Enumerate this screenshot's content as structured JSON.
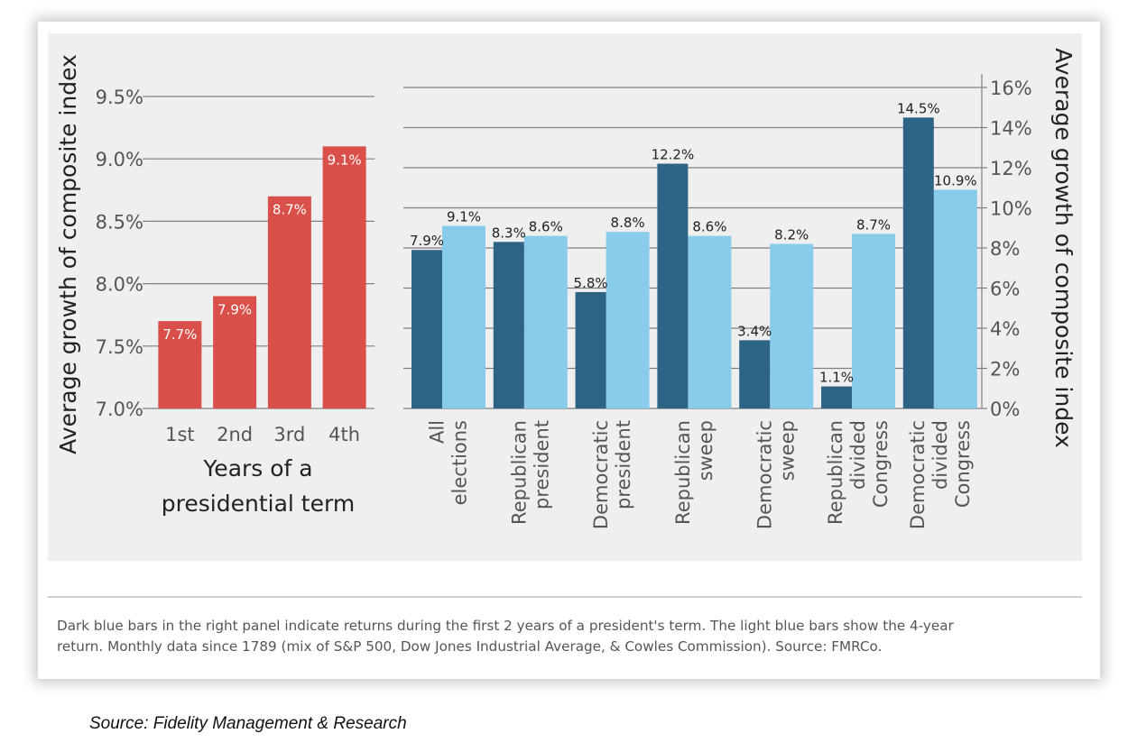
{
  "colors": {
    "red_bar": "#d9504b",
    "dark_blue_bar": "#2d6384",
    "light_blue_bar": "#89cbea",
    "gridline": "#7f7f7f",
    "panel_bg": "#efefef"
  },
  "caption": {
    "line1": "Dark blue bars in the right panel indicate returns during the first 2 years of a president's term. The light blue bars show the 4-year",
    "line2": "return. Monthly data since 1789 (mix of S&P 500, Dow Jones Industrial Average, & Cowles Commission). Source: FMRCo."
  },
  "source": "Source: Fidelity Management & Research",
  "chart_data": [
    {
      "type": "bar",
      "ylabel": "Average growth of composite index",
      "xlabel_lines": [
        "Years of a",
        "presidential term"
      ],
      "ylim": [
        7.0,
        9.5
      ],
      "yticks": [
        7.0,
        7.5,
        8.0,
        8.5,
        9.0,
        9.5
      ],
      "ytick_labels": [
        "7.0%",
        "7.5%",
        "8.0%",
        "8.5%",
        "9.0%",
        "9.5%"
      ],
      "grid": true,
      "categories": [
        "1st",
        "2nd",
        "3rd",
        "4th"
      ],
      "values": [
        7.7,
        7.9,
        8.7,
        9.1
      ],
      "value_labels": [
        "7.7%",
        "7.9%",
        "8.7%",
        "9.1%"
      ]
    },
    {
      "type": "bar",
      "ylabel": "Average growth of composite index",
      "ylim": [
        0,
        16
      ],
      "yticks": [
        0,
        2,
        4,
        6,
        8,
        10,
        12,
        14,
        16
      ],
      "ytick_labels": [
        "0%",
        "2%",
        "4%",
        "6%",
        "8%",
        "10%",
        "12%",
        "14%",
        "16%"
      ],
      "yaxis_position": "right",
      "grid": true,
      "categories": [
        [
          "All",
          "elections"
        ],
        [
          "Republican",
          "president"
        ],
        [
          "Democratic",
          "president"
        ],
        [
          "Republican",
          "sweep"
        ],
        [
          "Democratic",
          "sweep"
        ],
        [
          "Republican",
          "divided",
          "Congress"
        ],
        [
          "Democratic",
          "divided",
          "Congress"
        ]
      ],
      "series": [
        {
          "values": [
            7.9,
            8.3,
            5.8,
            12.2,
            3.4,
            1.1,
            14.5
          ],
          "value_labels": [
            "7.9%",
            "8.3%",
            "5.8%",
            "12.2%",
            "3.4%",
            "1.1%",
            "14.5%"
          ]
        },
        {
          "values": [
            9.1,
            8.6,
            8.8,
            8.6,
            8.2,
            8.7,
            10.9
          ],
          "value_labels": [
            "9.1%",
            "8.6%",
            "8.8%",
            "8.6%",
            "8.2%",
            "8.7%",
            "10.9%"
          ]
        }
      ]
    }
  ]
}
